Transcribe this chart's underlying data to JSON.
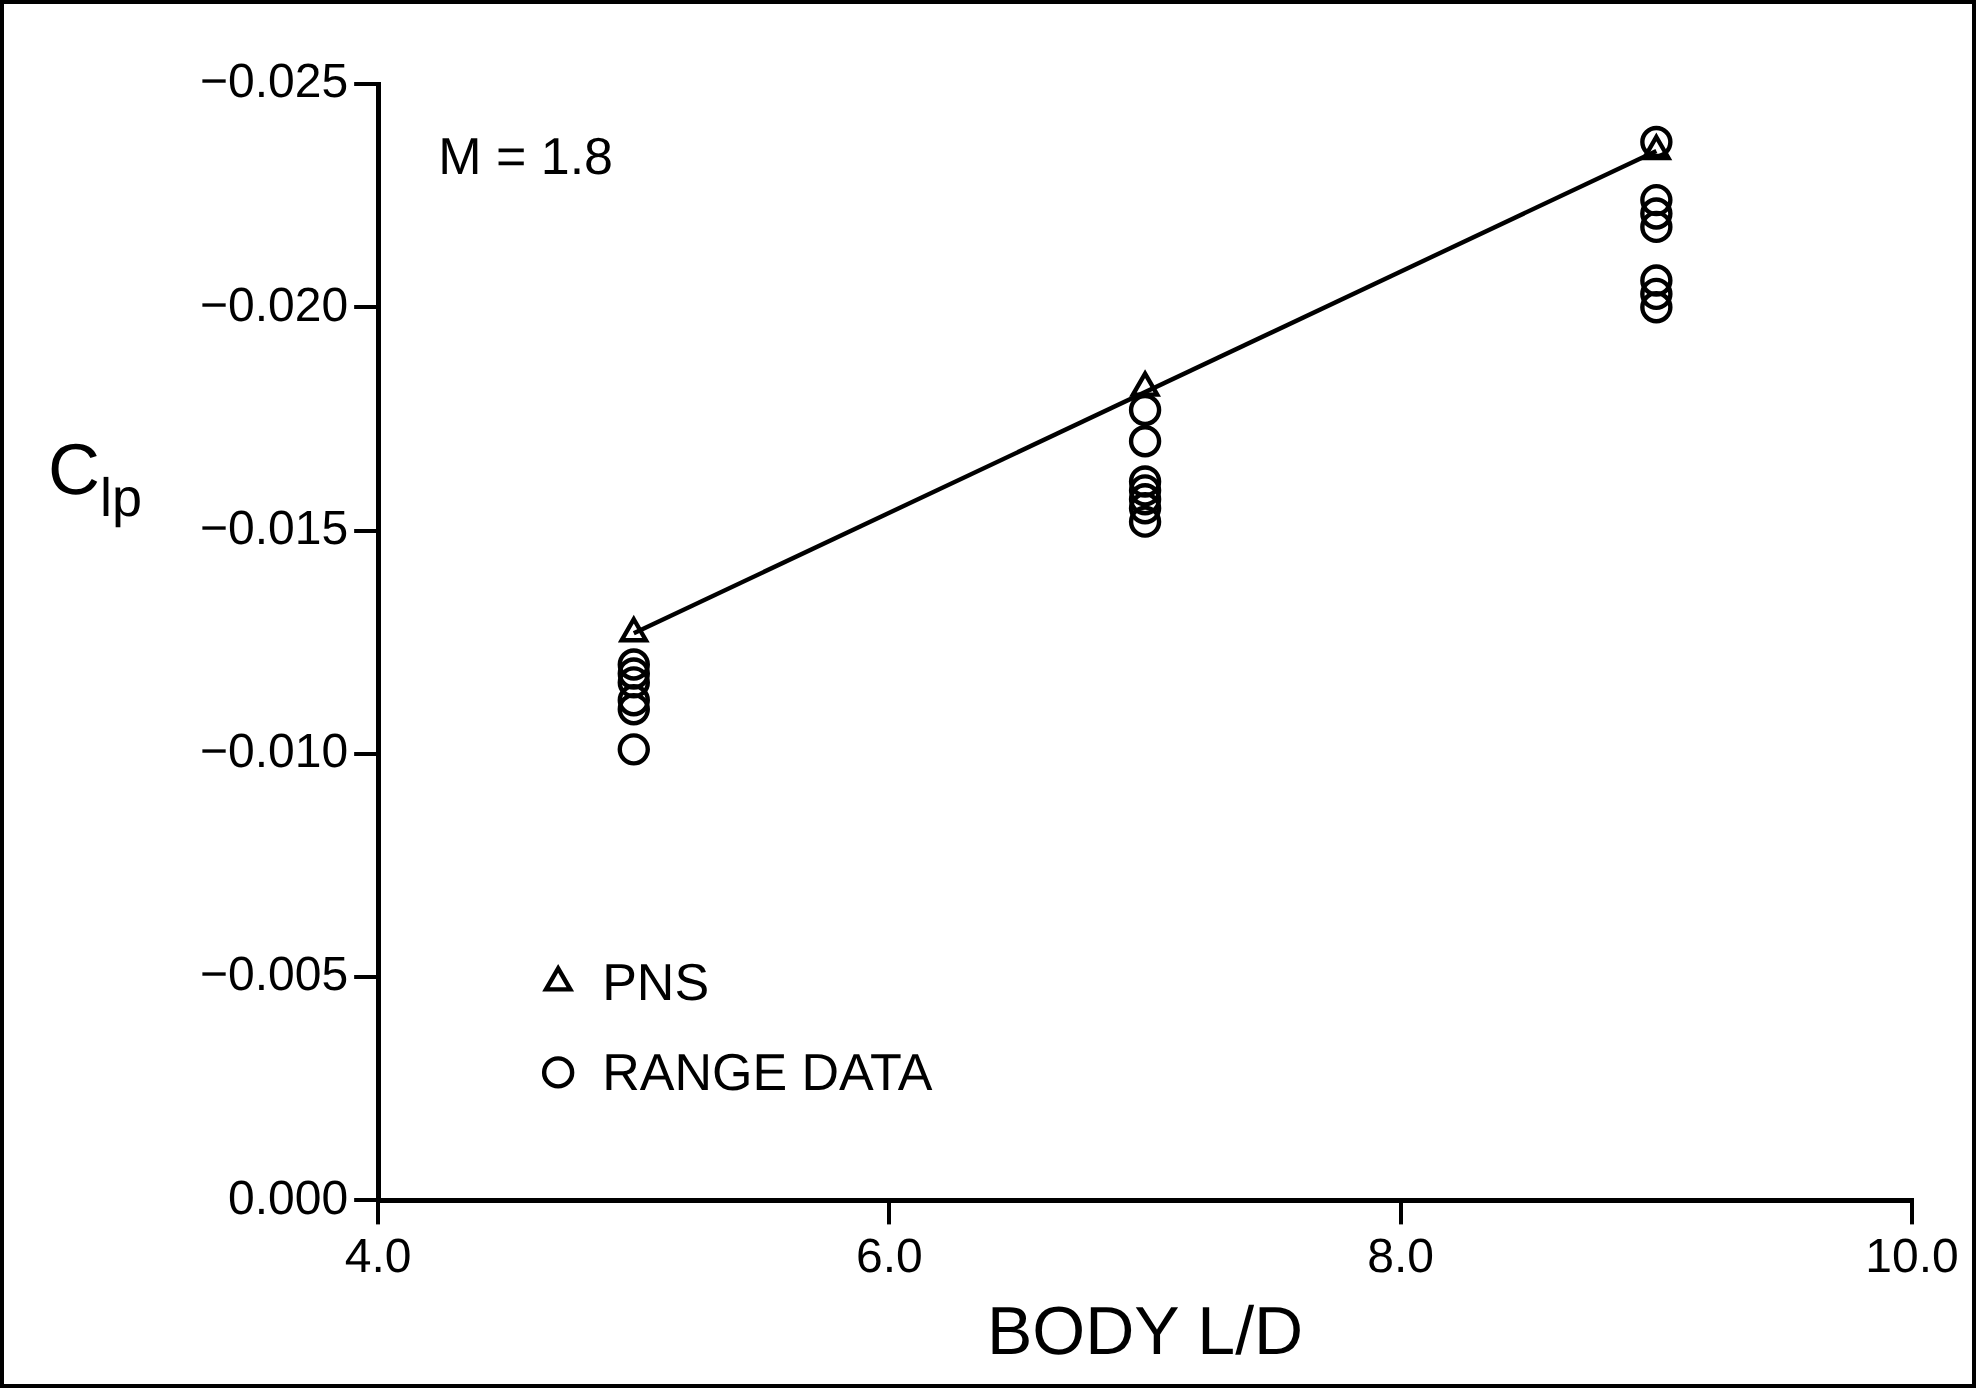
{
  "chart_data": {
    "type": "scatter",
    "xlabel": "BODY L/D",
    "ylabel": "C$_{lp}$",
    "annotations": [
      "M = 1.8"
    ],
    "xlim": [
      4,
      10
    ],
    "xticks": [
      {
        "value": 4,
        "label": "4.0"
      },
      {
        "value": 6,
        "label": "6.0"
      },
      {
        "value": 8,
        "label": "8.0"
      },
      {
        "value": 10,
        "label": "10.0"
      }
    ],
    "ylim": [
      0,
      -0.025
    ],
    "yticks": [
      {
        "value": 0,
        "label": "0.000"
      },
      {
        "value": -0.005,
        "label": "−0.005"
      },
      {
        "value": -0.01,
        "label": "−0.010"
      },
      {
        "value": -0.015,
        "label": "−0.015"
      },
      {
        "value": -0.02,
        "label": "−0.020"
      },
      {
        "value": -0.025,
        "label": "−0.025"
      }
    ],
    "grid": false,
    "legend": "bottom left",
    "series": [
      {
        "type": "line",
        "color": "#000000",
        "marker": "none",
        "x": [
          5,
          9
        ],
        "values": [
          -0.0127,
          -0.0235
        ]
      },
      {
        "name": "PNS",
        "color": "#000000",
        "marker": "triangle",
        "x": [
          5,
          7,
          9
        ],
        "values": [
          -0.0127,
          -0.0182,
          -0.0235
        ]
      },
      {
        "name": "RANGE DATA",
        "color": "#000000",
        "marker": "circle",
        "x": [
          5,
          5,
          5,
          5,
          5,
          5,
          7,
          7,
          7,
          7,
          7,
          7,
          7,
          9,
          9,
          9,
          9,
          9,
          9,
          9
        ],
        "values": [
          -0.012,
          -0.0118,
          -0.0116,
          -0.0112,
          -0.011,
          -0.0101,
          -0.0177,
          -0.017,
          -0.0161,
          -0.0159,
          -0.0157,
          -0.0155,
          -0.0152,
          -0.0237,
          -0.0224,
          -0.0221,
          -0.0218,
          -0.0206,
          -0.0203,
          -0.02
        ]
      }
    ]
  }
}
